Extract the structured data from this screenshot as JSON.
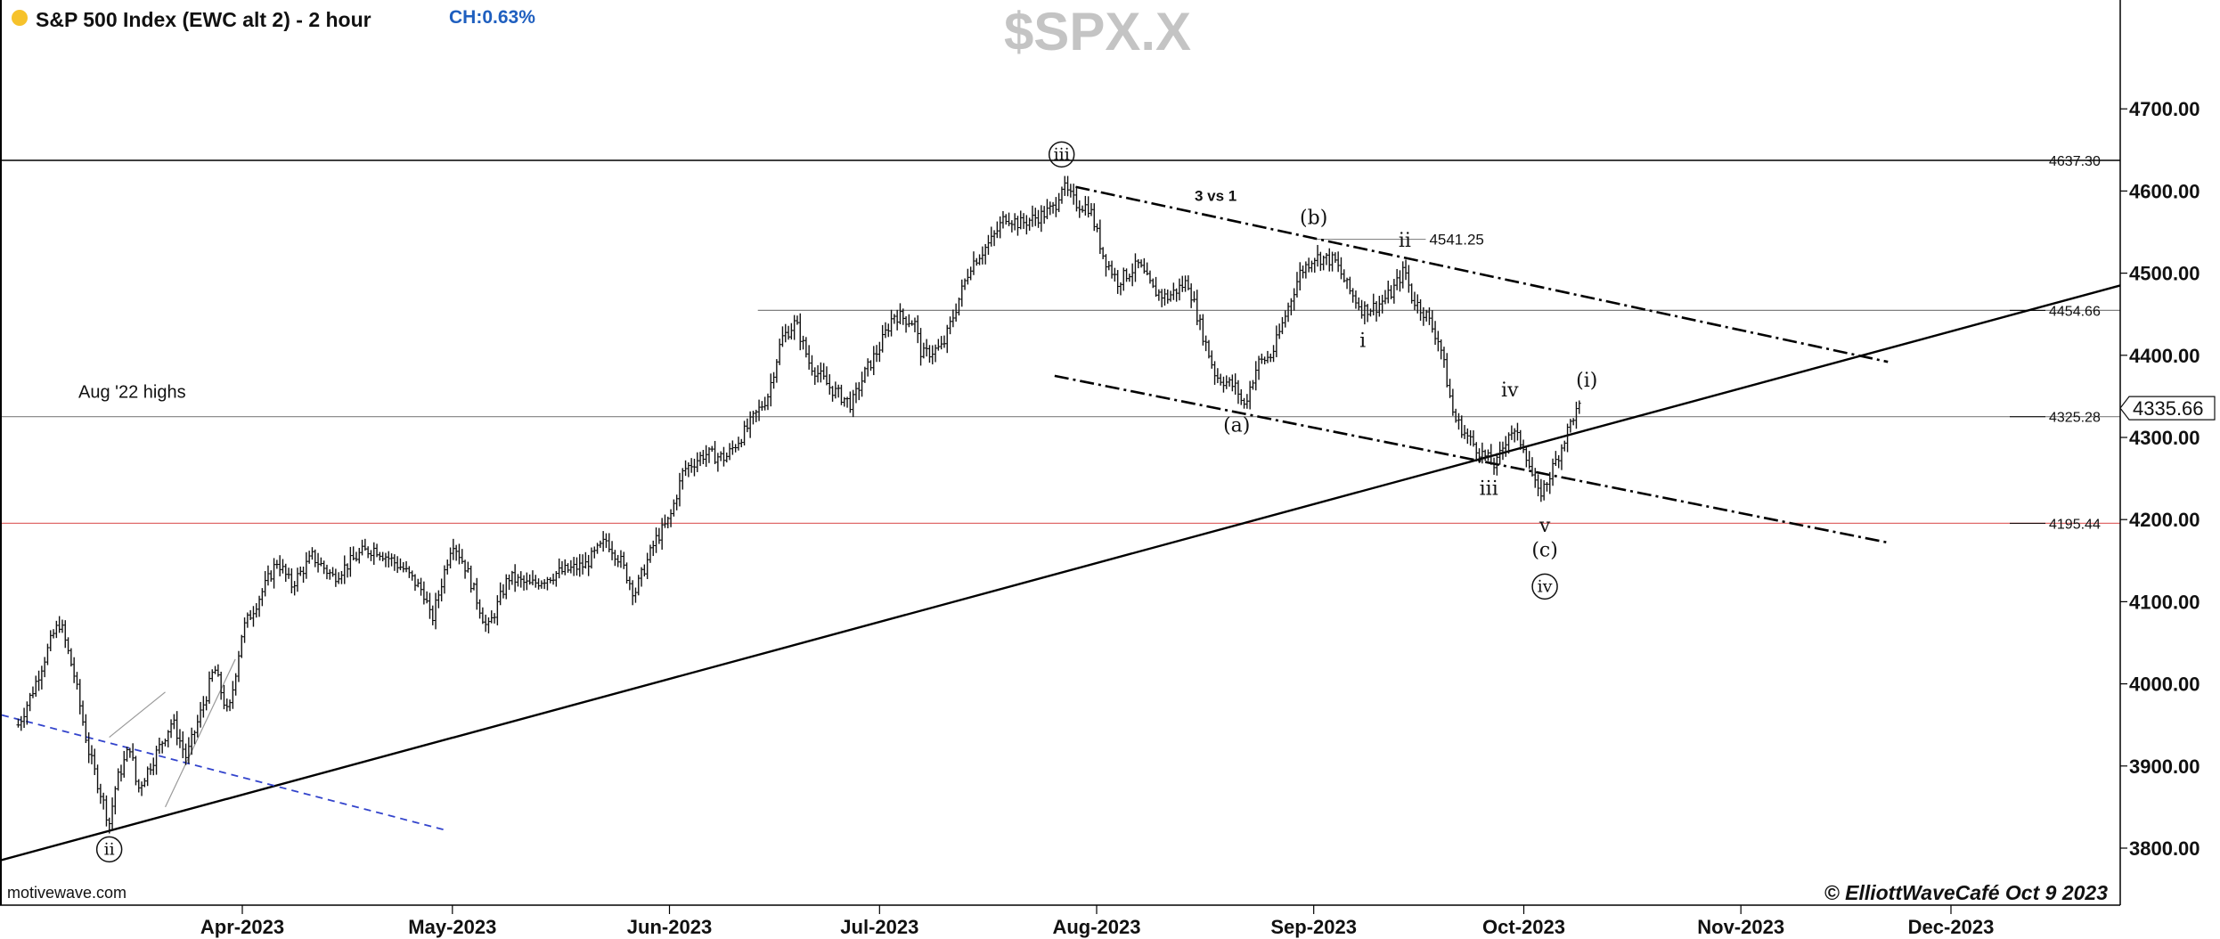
{
  "header": {
    "title": "S&P 500 Index (EWC alt 2) - 2 hour",
    "change": "CH:0.63%",
    "watermark": "$SPX.X",
    "status_dot_color": "#f6c22b",
    "change_color": "#1f5fbf"
  },
  "footer": {
    "source": "motivewave.com",
    "credit": "© ElliottWaveCafé Oct 9 2023"
  },
  "chart_data": {
    "type": "bar",
    "subtype": "ohlc-price-bars",
    "title": "S&P 500 Index (EWC alt 2) - 2 hour",
    "ylim": [
      3740,
      4790
    ],
    "grid": false,
    "y_axis_side": "right",
    "y_ticks": [
      3800,
      3900,
      4000,
      4100,
      4200,
      4300,
      4400,
      4500,
      4600,
      4700
    ],
    "y_tick_labels": [
      "3800.00",
      "3900.00",
      "4000.00",
      "4100.00",
      "4200.00",
      "4300.00",
      "4400.00",
      "4500.00",
      "4600.00",
      "4700.00"
    ],
    "x_ticks": [
      {
        "date": "2023-04-01",
        "label": "Apr-2023"
      },
      {
        "date": "2023-05-01",
        "label": "May-2023"
      },
      {
        "date": "2023-06-01",
        "label": "Jun-2023"
      },
      {
        "date": "2023-07-01",
        "label": "Jul-2023"
      },
      {
        "date": "2023-08-01",
        "label": "Aug-2023"
      },
      {
        "date": "2023-09-01",
        "label": "Sep-2023"
      },
      {
        "date": "2023-10-01",
        "label": "Oct-2023"
      },
      {
        "date": "2023-11-01",
        "label": "Nov-2023"
      },
      {
        "date": "2023-12-01",
        "label": "Dec-2023"
      }
    ],
    "last_price": {
      "value": 4335.66,
      "label": "4335.66"
    },
    "price_path": [
      [
        "2023-02-28",
        3950
      ],
      [
        "2023-03-02",
        3990
      ],
      [
        "2023-03-05",
        4060
      ],
      [
        "2023-03-06",
        4075
      ],
      [
        "2023-03-08",
        4010
      ],
      [
        "2023-03-10",
        3920
      ],
      [
        "2023-03-13",
        3830
      ],
      [
        "2023-03-14",
        3880
      ],
      [
        "2023-03-16",
        3925
      ],
      [
        "2023-03-17",
        3870
      ],
      [
        "2023-03-20",
        3920
      ],
      [
        "2023-03-22",
        3955
      ],
      [
        "2023-03-24",
        3910
      ],
      [
        "2023-03-27",
        3990
      ],
      [
        "2023-03-28",
        4020
      ],
      [
        "2023-03-30",
        3960
      ],
      [
        "2023-04-01",
        4065
      ],
      [
        "2023-04-04",
        4115
      ],
      [
        "2023-04-06",
        4150
      ],
      [
        "2023-04-08",
        4120
      ],
      [
        "2023-04-11",
        4155
      ],
      [
        "2023-04-14",
        4130
      ],
      [
        "2023-04-18",
        4160
      ],
      [
        "2023-04-20",
        4165
      ],
      [
        "2023-04-24",
        4140
      ],
      [
        "2023-04-27",
        4110
      ],
      [
        "2023-04-28",
        4075
      ],
      [
        "2023-05-01",
        4175
      ],
      [
        "2023-05-03",
        4140
      ],
      [
        "2023-05-05",
        4090
      ],
      [
        "2023-05-06",
        4065
      ],
      [
        "2023-05-09",
        4130
      ],
      [
        "2023-05-12",
        4120
      ],
      [
        "2023-05-16",
        4135
      ],
      [
        "2023-05-20",
        4145
      ],
      [
        "2023-05-23",
        4175
      ],
      [
        "2023-05-25",
        4150
      ],
      [
        "2023-05-27",
        4110
      ],
      [
        "2023-05-30",
        4175
      ],
      [
        "2023-06-01",
        4200
      ],
      [
        "2023-06-03",
        4260
      ],
      [
        "2023-06-06",
        4280
      ],
      [
        "2023-06-09",
        4275
      ],
      [
        "2023-06-12",
        4310
      ],
      [
        "2023-06-15",
        4350
      ],
      [
        "2023-06-17",
        4420
      ],
      [
        "2023-06-19",
        4440
      ],
      [
        "2023-06-21",
        4390
      ],
      [
        "2023-06-24",
        4360
      ],
      [
        "2023-06-27",
        4340
      ],
      [
        "2023-06-29",
        4380
      ],
      [
        "2023-07-01",
        4410
      ],
      [
        "2023-07-03",
        4450
      ],
      [
        "2023-07-06",
        4440
      ],
      [
        "2023-07-07",
        4400
      ],
      [
        "2023-07-10",
        4410
      ],
      [
        "2023-07-12",
        4460
      ],
      [
        "2023-07-14",
        4510
      ],
      [
        "2023-07-17",
        4540
      ],
      [
        "2023-07-19",
        4570
      ],
      [
        "2023-07-21",
        4560
      ],
      [
        "2023-07-24",
        4570
      ],
      [
        "2023-07-26",
        4580
      ],
      [
        "2023-07-27",
        4607
      ],
      [
        "2023-07-29",
        4585
      ],
      [
        "2023-07-31",
        4580
      ],
      [
        "2023-08-02",
        4520
      ],
      [
        "2023-08-04",
        4490
      ],
      [
        "2023-08-07",
        4510
      ],
      [
        "2023-08-09",
        4480
      ],
      [
        "2023-08-11",
        4470
      ],
      [
        "2023-08-14",
        4490
      ],
      [
        "2023-08-16",
        4430
      ],
      [
        "2023-08-18",
        4375
      ],
      [
        "2023-08-21",
        4360
      ],
      [
        "2023-08-22",
        4337
      ],
      [
        "2023-08-24",
        4390
      ],
      [
        "2023-08-26",
        4400
      ],
      [
        "2023-08-28",
        4450
      ],
      [
        "2023-08-30",
        4500
      ],
      [
        "2023-09-01",
        4520
      ],
      [
        "2023-09-04",
        4515
      ],
      [
        "2023-09-06",
        4480
      ],
      [
        "2023-09-08",
        4455
      ],
      [
        "2023-09-10",
        4460
      ],
      [
        "2023-09-12",
        4475
      ],
      [
        "2023-09-14",
        4505
      ],
      [
        "2023-09-15",
        4470
      ],
      [
        "2023-09-17",
        4450
      ],
      [
        "2023-09-19",
        4415
      ],
      [
        "2023-09-21",
        4325
      ],
      [
        "2023-09-23",
        4300
      ],
      [
        "2023-09-25",
        4280
      ],
      [
        "2023-09-27",
        4265
      ],
      [
        "2023-09-29",
        4310
      ],
      [
        "2023-10-01",
        4290
      ],
      [
        "2023-10-03",
        4230
      ],
      [
        "2023-10-04",
        4240
      ],
      [
        "2023-10-06",
        4280
      ],
      [
        "2023-10-08",
        4325
      ],
      [
        "2023-10-09",
        4336
      ]
    ],
    "levels": [
      {
        "value": 4637.3,
        "label": "4637.30",
        "color": "#000000"
      },
      {
        "value": 4454.66,
        "label": "4454.66",
        "color": "#808080"
      },
      {
        "value": 4325.28,
        "label": "4325.28",
        "color": "#808080"
      },
      {
        "value": 4195.44,
        "label": "4195.44",
        "color": "#e06a6a"
      }
    ],
    "level_4541": {
      "value": 4541.25,
      "label": "4541.25"
    },
    "wave_labels": [
      {
        "text": "iii",
        "circled": true,
        "date": "2023-07-27",
        "value": 4638
      },
      {
        "text": "ii",
        "circled": true,
        "date": "2023-03-13",
        "value": 3792
      },
      {
        "text": "(b)",
        "circled": false,
        "date": "2023-09-01",
        "value": 4560
      },
      {
        "text": "ii",
        "circled": false,
        "date": "2023-09-14",
        "value": 4532
      },
      {
        "text": "i",
        "circled": false,
        "date": "2023-09-08",
        "value": 4410
      },
      {
        "text": "(a)",
        "circled": false,
        "date": "2023-08-21",
        "value": 4307
      },
      {
        "text": "iv",
        "circled": false,
        "date": "2023-09-29",
        "value": 4350
      },
      {
        "text": "(i)",
        "circled": false,
        "date": "2023-10-10",
        "value": 4362
      },
      {
        "text": "iii",
        "circled": false,
        "date": "2023-09-26",
        "value": 4230
      },
      {
        "text": "v",
        "circled": false,
        "date": "2023-10-04",
        "value": 4185
      },
      {
        "text": "(c)",
        "circled": false,
        "date": "2023-10-04",
        "value": 4155
      },
      {
        "text": "iv",
        "circled": true,
        "date": "2023-10-04",
        "value": 4112
      }
    ],
    "annotations": [
      {
        "text": "3 vs 1",
        "date": "2023-08-18",
        "value": 4588
      },
      {
        "text": "Aug '22 highs",
        "date": "2023-03-08",
        "value": 4348
      }
    ],
    "trendlines": {
      "long_support": {
        "from": [
          "2023-02-28",
          3785
        ],
        "to": [
          "2023-12-31",
          4485
        ]
      },
      "channel_upper": {
        "from": [
          "2023-07-29",
          4605
        ],
        "to": [
          "2023-11-22",
          4392
        ]
      },
      "channel_lower": {
        "from": [
          "2023-07-26",
          4375
        ],
        "to": [
          "2023-11-22",
          4172
        ]
      },
      "blue_dashed": {
        "from": [
          "2023-02-28",
          3962
        ],
        "to": [
          "2023-04-30",
          3822
        ]
      },
      "gray_1": {
        "from": [
          "2023-03-21",
          3850
        ],
        "to": [
          "2023-03-31",
          4030
        ]
      },
      "gray_2": {
        "from": [
          "2023-03-13",
          3935
        ],
        "to": [
          "2023-03-21",
          3990
        ]
      }
    }
  }
}
